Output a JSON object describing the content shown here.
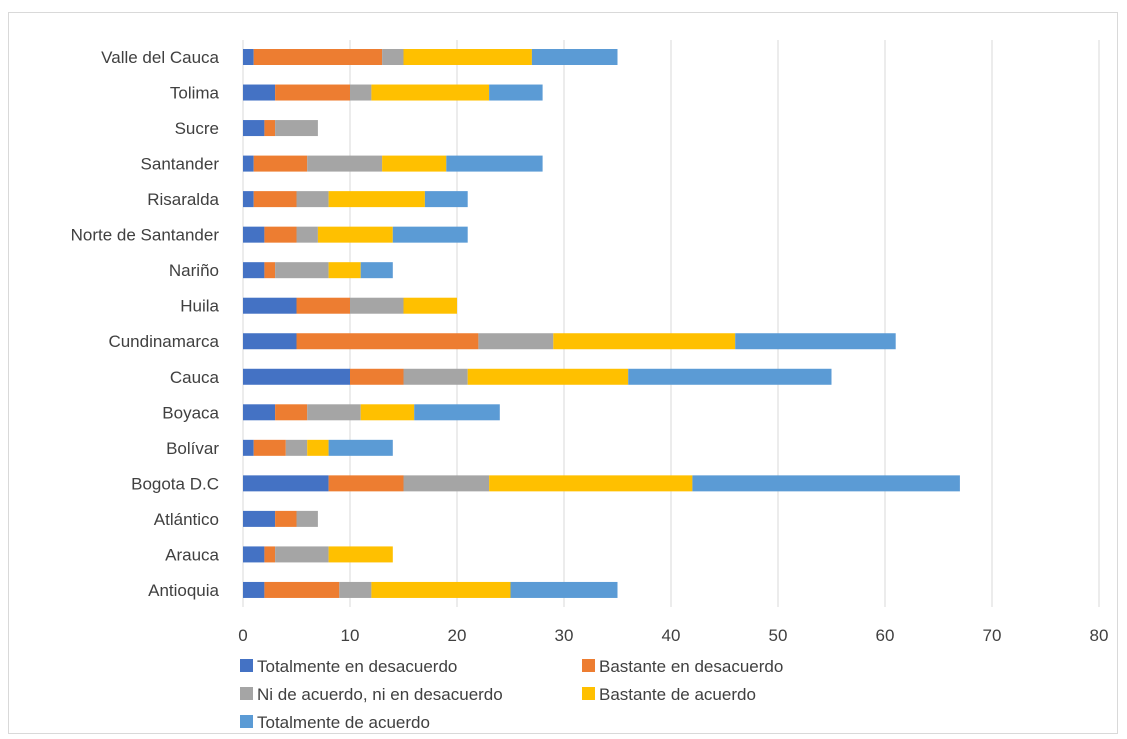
{
  "chart_data": {
    "type": "bar",
    "orientation": "horizontal",
    "stacked": true,
    "title": "",
    "xlabel": "",
    "ylabel": "",
    "xlim": [
      0,
      80
    ],
    "xticks": [
      0,
      10,
      20,
      30,
      40,
      50,
      60,
      70,
      80
    ],
    "grid": true,
    "legend_position": "bottom",
    "categories": [
      "Antioquia",
      "Arauca",
      "Atlántico",
      "Bogota D.C",
      "Bolívar",
      "Boyaca",
      "Cauca",
      "Cundinamarca",
      "Huila",
      "Nariño",
      "Norte de Santander",
      "Risaralda",
      "Santander",
      "Sucre",
      "Tolima",
      "Valle del Cauca"
    ],
    "series": [
      {
        "name": "Totalmente en desacuerdo",
        "color": "#4472C4",
        "values": [
          2,
          2,
          3,
          8,
          1,
          3,
          10,
          5,
          5,
          2,
          2,
          1,
          1,
          2,
          3,
          1
        ]
      },
      {
        "name": "Bastante en desacuerdo",
        "color": "#ED7D31",
        "values": [
          7,
          1,
          2,
          7,
          3,
          3,
          5,
          17,
          5,
          1,
          3,
          4,
          5,
          1,
          7,
          12
        ]
      },
      {
        "name": "Ni de acuerdo, ni en desacuerdo",
        "color": "#A5A5A5",
        "values": [
          3,
          5,
          2,
          8,
          2,
          5,
          6,
          7,
          5,
          5,
          2,
          3,
          7,
          4,
          2,
          2
        ]
      },
      {
        "name": "Bastante de acuerdo",
        "color": "#FFC000",
        "values": [
          13,
          6,
          0,
          19,
          2,
          5,
          15,
          17,
          5,
          3,
          7,
          9,
          6,
          0,
          11,
          12
        ]
      },
      {
        "name": "Totalmente de acuerdo",
        "color": "#5B9BD5",
        "values": [
          10,
          0,
          0,
          25,
          6,
          8,
          19,
          15,
          0,
          3,
          7,
          4,
          9,
          0,
          5,
          8
        ]
      }
    ]
  }
}
